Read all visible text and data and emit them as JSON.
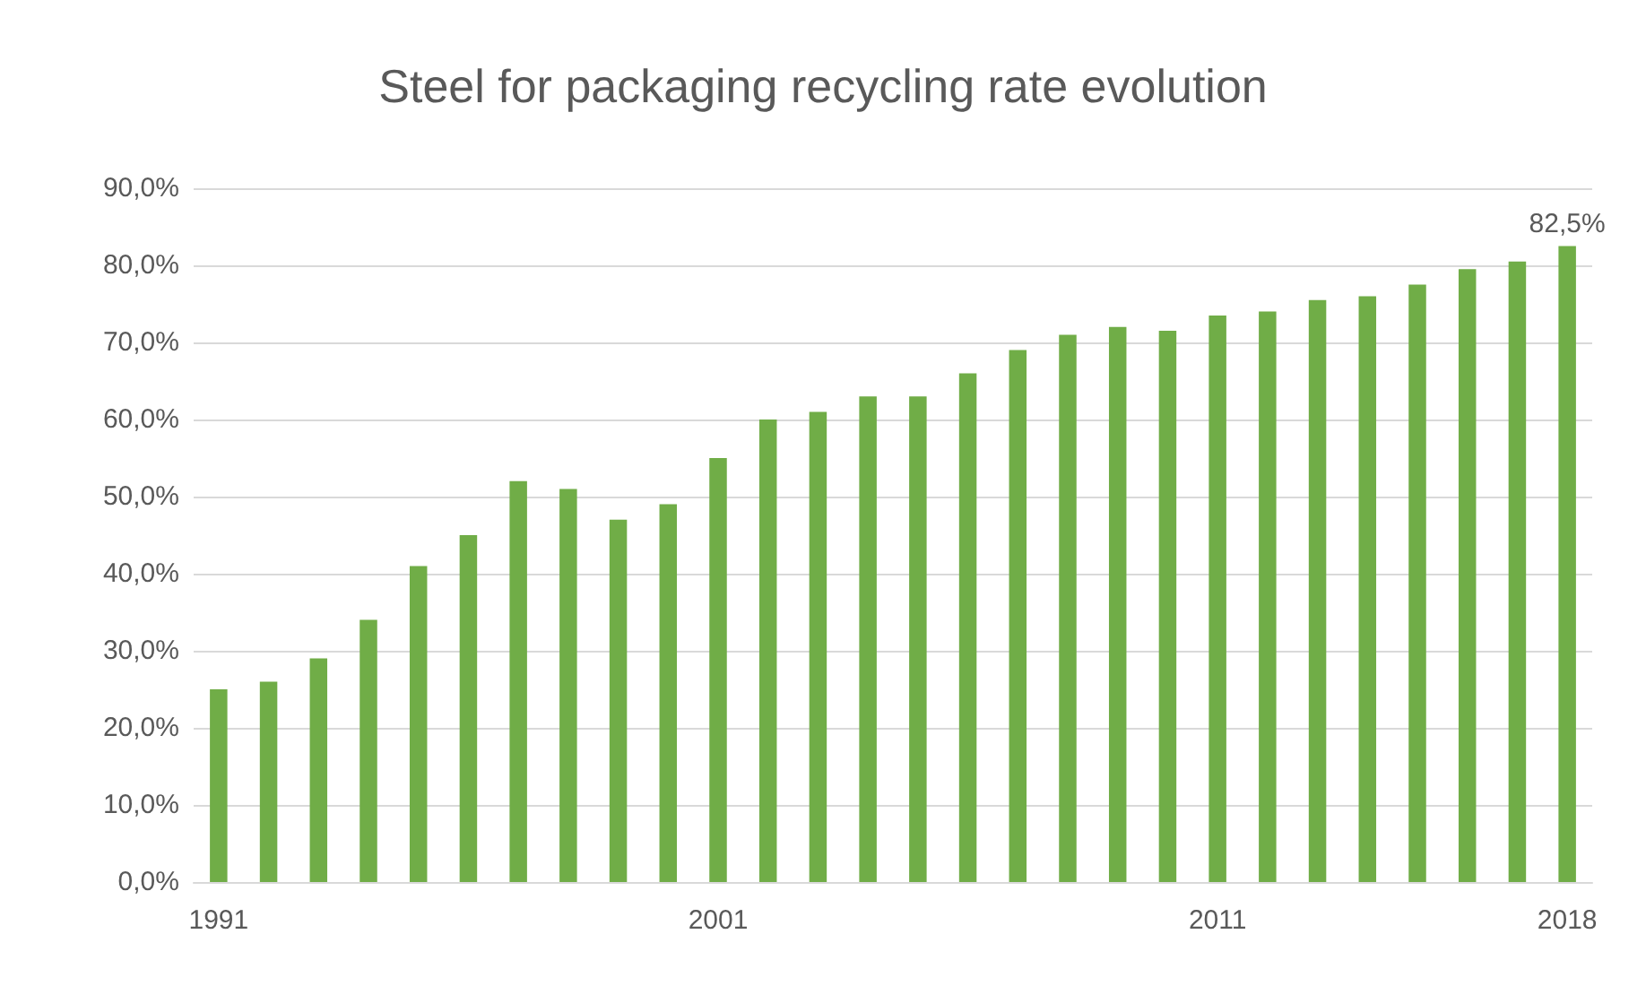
{
  "chart_data": {
    "type": "bar",
    "title": "Steel for packaging recycling rate evolution",
    "categories": [
      "1991",
      null,
      null,
      null,
      null,
      null,
      null,
      null,
      null,
      null,
      "2001",
      null,
      null,
      null,
      null,
      null,
      null,
      null,
      null,
      null,
      "2011",
      null,
      null,
      null,
      null,
      null,
      null,
      "2018"
    ],
    "values": [
      25,
      26,
      29,
      34,
      41,
      45,
      52,
      51,
      47,
      49,
      55,
      60,
      61,
      63,
      63,
      66,
      69,
      71,
      72,
      71.5,
      73.5,
      74,
      75.5,
      76,
      77.5,
      79.5,
      80.5,
      82.5
    ],
    "value_labels": [
      null,
      null,
      null,
      null,
      null,
      null,
      null,
      null,
      null,
      null,
      null,
      null,
      null,
      null,
      null,
      null,
      null,
      null,
      null,
      null,
      null,
      null,
      null,
      null,
      null,
      null,
      null,
      "82,5%"
    ],
    "color": "#70ad47",
    "ylim": [
      0,
      90
    ],
    "yticks": [
      {
        "value": 0,
        "label": "0,0%"
      },
      {
        "value": 10,
        "label": "10,0%"
      },
      {
        "value": 20,
        "label": "20,0%"
      },
      {
        "value": 30,
        "label": "30,0%"
      },
      {
        "value": 40,
        "label": "40,0%"
      },
      {
        "value": 50,
        "label": "50,0%"
      },
      {
        "value": 60,
        "label": "60,0%"
      },
      {
        "value": 70,
        "label": "70,0%"
      },
      {
        "value": 80,
        "label": "80,0%"
      },
      {
        "value": 90,
        "label": "90,0%"
      }
    ],
    "grid": "y"
  }
}
